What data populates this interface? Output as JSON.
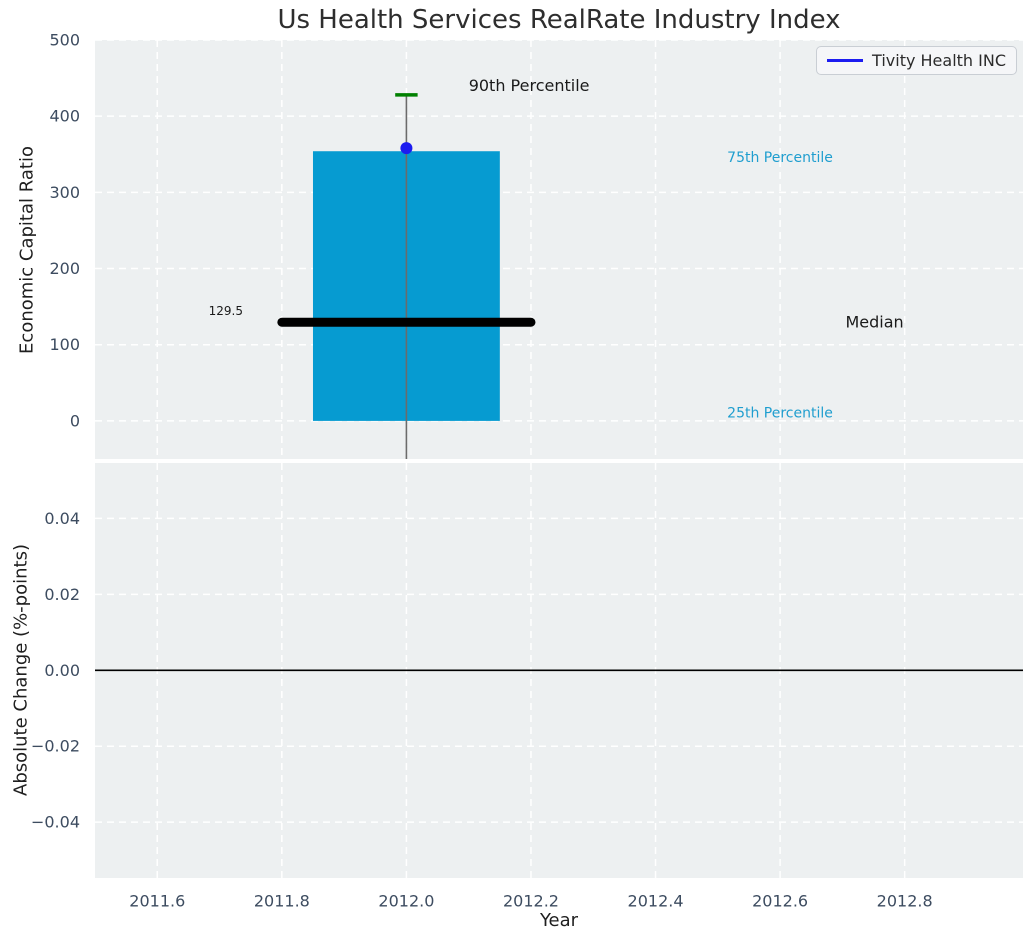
{
  "chart_data": {
    "type": "boxplot",
    "title": "Us Health Services RealRate Industry Index",
    "xlabel": "Year",
    "xlim": [
      2011.5,
      2012.99
    ],
    "x_ticks": [
      2011.6,
      2011.8,
      2012.0,
      2012.2,
      2012.4,
      2012.6,
      2012.8
    ],
    "x_tick_labels": [
      "2011.6",
      "2011.8",
      "2012.0",
      "2012.2",
      "2012.4",
      "2012.6",
      "2012.8"
    ],
    "legend": [
      {
        "name": "Tivity Health INC",
        "color": "#1c1cf0"
      }
    ],
    "subplots": [
      {
        "ylabel": "Economic Capital Ratio",
        "ylim": [
          -50,
          500
        ],
        "y_ticks": [
          0,
          100,
          200,
          300,
          400,
          500
        ],
        "y_tick_labels": [
          "0",
          "100",
          "200",
          "300",
          "400",
          "500"
        ],
        "box": {
          "x": 2012.0,
          "bar_halfwidth": 0.15,
          "bar_bottom": 0,
          "bar_top": 354,
          "median": 129.5,
          "median_halfwidth": 0.2,
          "whisker_top": 428,
          "whisker_bottom": -50,
          "cap_halfwidth": 0.018,
          "percentile_90": 428,
          "percentile_75": 354,
          "percentile_25": 0,
          "bar_color": "#069bd1",
          "median_color": "#000000",
          "whisker_color": "#6b6b6b",
          "cap_color": "#008000"
        },
        "point": {
          "x": 2012.0,
          "y": 358,
          "color": "#1c1cf0",
          "series": "Tivity Health INC"
        },
        "annotations": [
          {
            "text": "90th Percentile",
            "x": 2012.1,
            "y": 440,
            "color": "#1a1a1a",
            "size": 16,
            "anchor": "start"
          },
          {
            "text": "75th Percentile",
            "x": 2012.515,
            "y": 345,
            "color": "#1f9ecf",
            "size": 14,
            "anchor": "start"
          },
          {
            "text": "Median",
            "x": 2012.705,
            "y": 130,
            "color": "#1a1a1a",
            "size": 16,
            "anchor": "start"
          },
          {
            "text": "25th Percentile",
            "x": 2012.515,
            "y": 10,
            "color": "#1f9ecf",
            "size": 14,
            "anchor": "start"
          },
          {
            "text": "129.5",
            "x": 2011.71,
            "y": 144,
            "color": "#1a1a1a",
            "size": 12,
            "anchor": "middle"
          }
        ]
      },
      {
        "ylabel": "Absolute Change (%-points)",
        "ylim": [
          -0.0547,
          0.0546
        ],
        "y_ticks": [
          -0.04,
          -0.02,
          0,
          0.02,
          0.04
        ],
        "y_tick_labels": [
          "−0.04",
          "−0.02",
          "0.00",
          "0.02",
          "0.04"
        ],
        "zero_line": {
          "y": 0,
          "color": "#000000"
        }
      }
    ],
    "style": {
      "axes_bg": "#edf0f1",
      "grid_color": "#ffffff",
      "tick_color": "#3d4c60",
      "label_color": "#1f1f1f"
    }
  }
}
